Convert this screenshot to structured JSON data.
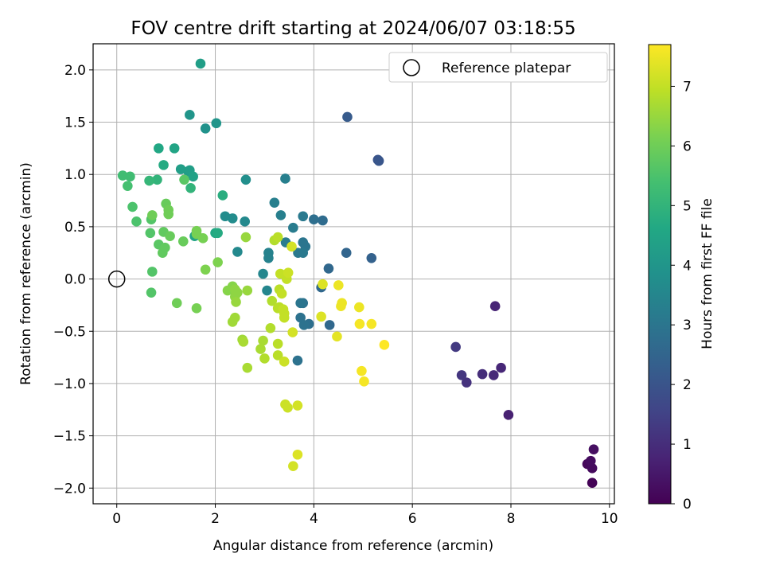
{
  "chart_data": {
    "type": "scatter",
    "title": "FOV centre drift starting at 2024/06/07 03:18:55",
    "xlabel": "Angular distance from reference (arcmin)",
    "ylabel": "Rotation from reference (arcmin)",
    "xlim": [
      -0.48,
      10.1
    ],
    "ylim": [
      -2.15,
      2.25
    ],
    "xticks": [
      0,
      2,
      4,
      6,
      8,
      10
    ],
    "xtick_labels": [
      "0",
      "2",
      "4",
      "6",
      "8",
      "10"
    ],
    "yticks": [
      -2.0,
      -1.5,
      -1.0,
      -0.5,
      0.0,
      0.5,
      1.0,
      1.5,
      2.0
    ],
    "ytick_labels": [
      "−2.0",
      "−1.5",
      "−1.0",
      "−0.5",
      "0.0",
      "0.5",
      "1.0",
      "1.5",
      "2.0"
    ],
    "grid": true,
    "legend": {
      "placement": "top-right",
      "entries": [
        "Reference platepar"
      ]
    },
    "reference_point": {
      "x": 0,
      "y": 0,
      "label": "Reference platepar"
    },
    "colorbar": {
      "label": "Hours from first FF file",
      "colormap": "viridis",
      "range": [
        0,
        7.7
      ],
      "ticks": [
        0,
        1,
        2,
        3,
        4,
        5,
        6,
        7
      ],
      "tick_labels": [
        "0",
        "1",
        "2",
        "3",
        "4",
        "5",
        "6",
        "7"
      ]
    },
    "points": [
      {
        "x": 9.65,
        "y": -1.95,
        "c": 0.05
      },
      {
        "x": 9.55,
        "y": -1.77,
        "c": 0.15
      },
      {
        "x": 9.65,
        "y": -1.81,
        "c": 0.2
      },
      {
        "x": 9.62,
        "y": -1.74,
        "c": 0.25
      },
      {
        "x": 9.68,
        "y": -1.63,
        "c": 0.3
      },
      {
        "x": 7.95,
        "y": -1.3,
        "c": 0.7
      },
      {
        "x": 7.8,
        "y": -0.85,
        "c": 0.85
      },
      {
        "x": 7.65,
        "y": -0.92,
        "c": 0.9
      },
      {
        "x": 7.68,
        "y": -0.26,
        "c": 0.8
      },
      {
        "x": 7.42,
        "y": -0.91,
        "c": 1.0
      },
      {
        "x": 7.1,
        "y": -0.99,
        "c": 1.1
      },
      {
        "x": 7.0,
        "y": -0.92,
        "c": 1.2
      },
      {
        "x": 6.88,
        "y": -0.65,
        "c": 1.3
      },
      {
        "x": 5.3,
        "y": 1.14,
        "c": 2.0
      },
      {
        "x": 5.32,
        "y": 1.13,
        "c": 2.05
      },
      {
        "x": 4.68,
        "y": 1.55,
        "c": 2.2
      },
      {
        "x": 5.17,
        "y": 0.2,
        "c": 2.4
      },
      {
        "x": 4.66,
        "y": 0.25,
        "c": 2.5
      },
      {
        "x": 4.3,
        "y": 0.1,
        "c": 2.6
      },
      {
        "x": 4.15,
        "y": -0.08,
        "c": 2.6
      },
      {
        "x": 4.32,
        "y": -0.44,
        "c": 2.6
      },
      {
        "x": 4.18,
        "y": 0.56,
        "c": 2.7
      },
      {
        "x": 4.0,
        "y": 0.57,
        "c": 2.8
      },
      {
        "x": 3.9,
        "y": -0.43,
        "c": 2.8
      },
      {
        "x": 3.8,
        "y": -0.44,
        "c": 2.9
      },
      {
        "x": 3.73,
        "y": -0.37,
        "c": 2.9
      },
      {
        "x": 3.78,
        "y": -0.23,
        "c": 2.9
      },
      {
        "x": 3.73,
        "y": -0.23,
        "c": 3.0
      },
      {
        "x": 3.67,
        "y": -0.78,
        "c": 2.9
      },
      {
        "x": 3.78,
        "y": 0.35,
        "c": 3.0
      },
      {
        "x": 3.83,
        "y": 0.31,
        "c": 3.0
      },
      {
        "x": 3.78,
        "y": 0.25,
        "c": 3.1
      },
      {
        "x": 3.68,
        "y": 0.25,
        "c": 3.1
      },
      {
        "x": 3.78,
        "y": 0.6,
        "c": 3.1
      },
      {
        "x": 3.58,
        "y": 0.49,
        "c": 3.2
      },
      {
        "x": 3.43,
        "y": 0.35,
        "c": 3.2
      },
      {
        "x": 3.33,
        "y": 0.61,
        "c": 3.3
      },
      {
        "x": 3.2,
        "y": 0.73,
        "c": 3.3
      },
      {
        "x": 3.42,
        "y": 0.96,
        "c": 3.3
      },
      {
        "x": 3.08,
        "y": 0.25,
        "c": 3.4
      },
      {
        "x": 3.08,
        "y": 0.2,
        "c": 3.4
      },
      {
        "x": 2.97,
        "y": 0.05,
        "c": 3.5
      },
      {
        "x": 3.05,
        "y": -0.11,
        "c": 3.5
      },
      {
        "x": 2.45,
        "y": 0.26,
        "c": 3.6
      },
      {
        "x": 2.6,
        "y": 0.55,
        "c": 3.6
      },
      {
        "x": 2.35,
        "y": 0.58,
        "c": 3.7
      },
      {
        "x": 2.2,
        "y": 0.6,
        "c": 3.7
      },
      {
        "x": 2.62,
        "y": 0.95,
        "c": 3.8
      },
      {
        "x": 1.8,
        "y": 1.44,
        "c": 3.9
      },
      {
        "x": 2.02,
        "y": 1.49,
        "c": 4.0
      },
      {
        "x": 1.48,
        "y": 1.57,
        "c": 4.0
      },
      {
        "x": 1.7,
        "y": 2.06,
        "c": 4.3
      },
      {
        "x": 1.45,
        "y": 1.03,
        "c": 4.2
      },
      {
        "x": 1.3,
        "y": 1.05,
        "c": 4.3
      },
      {
        "x": 1.48,
        "y": 1.04,
        "c": 4.3
      },
      {
        "x": 1.55,
        "y": 0.98,
        "c": 4.4
      },
      {
        "x": 1.58,
        "y": 0.41,
        "c": 4.5
      },
      {
        "x": 1.17,
        "y": 1.25,
        "c": 4.5
      },
      {
        "x": 0.85,
        "y": 1.25,
        "c": 4.6
      },
      {
        "x": 0.95,
        "y": 1.09,
        "c": 4.7
      },
      {
        "x": 2.0,
        "y": 0.44,
        "c": 4.6
      },
      {
        "x": 2.05,
        "y": 0.44,
        "c": 4.7
      },
      {
        "x": 2.15,
        "y": 0.8,
        "c": 4.8
      },
      {
        "x": 1.5,
        "y": 0.87,
        "c": 5.0
      },
      {
        "x": 0.82,
        "y": 0.95,
        "c": 5.0
      },
      {
        "x": 0.66,
        "y": 0.94,
        "c": 5.1
      },
      {
        "x": 0.12,
        "y": 0.99,
        "c": 5.3
      },
      {
        "x": 0.27,
        "y": 0.98,
        "c": 5.3
      },
      {
        "x": 0.22,
        "y": 0.89,
        "c": 5.4
      },
      {
        "x": 0.32,
        "y": 0.69,
        "c": 5.5
      },
      {
        "x": 0.4,
        "y": 0.55,
        "c": 5.5
      },
      {
        "x": 0.68,
        "y": 0.44,
        "c": 5.6
      },
      {
        "x": 0.7,
        "y": 0.57,
        "c": 5.6
      },
      {
        "x": 0.72,
        "y": 0.07,
        "c": 5.6
      },
      {
        "x": 0.7,
        "y": -0.13,
        "c": 5.6
      },
      {
        "x": 1.37,
        "y": 0.95,
        "c": 5.7
      },
      {
        "x": 0.85,
        "y": 0.33,
        "c": 5.7
      },
      {
        "x": 0.93,
        "y": 0.25,
        "c": 5.8
      },
      {
        "x": 0.95,
        "y": 0.45,
        "c": 5.8
      },
      {
        "x": 0.98,
        "y": 0.3,
        "c": 5.8
      },
      {
        "x": 1.08,
        "y": 0.41,
        "c": 5.9
      },
      {
        "x": 1.35,
        "y": 0.36,
        "c": 5.9
      },
      {
        "x": 1.0,
        "y": 0.72,
        "c": 5.9
      },
      {
        "x": 1.05,
        "y": 0.66,
        "c": 6.0
      },
      {
        "x": 1.05,
        "y": 0.62,
        "c": 6.0
      },
      {
        "x": 0.72,
        "y": 0.61,
        "c": 6.0
      },
      {
        "x": 1.22,
        "y": -0.23,
        "c": 6.0
      },
      {
        "x": 1.62,
        "y": 0.46,
        "c": 6.1
      },
      {
        "x": 1.62,
        "y": 0.43,
        "c": 6.1
      },
      {
        "x": 1.75,
        "y": 0.39,
        "c": 6.1
      },
      {
        "x": 1.62,
        "y": -0.28,
        "c": 6.1
      },
      {
        "x": 1.8,
        "y": 0.09,
        "c": 6.2
      },
      {
        "x": 2.05,
        "y": 0.16,
        "c": 6.2
      },
      {
        "x": 2.25,
        "y": -0.11,
        "c": 6.3
      },
      {
        "x": 2.35,
        "y": -0.07,
        "c": 6.3
      },
      {
        "x": 2.4,
        "y": -0.1,
        "c": 6.4
      },
      {
        "x": 2.45,
        "y": -0.13,
        "c": 6.4
      },
      {
        "x": 2.4,
        "y": -0.17,
        "c": 6.4
      },
      {
        "x": 2.42,
        "y": -0.22,
        "c": 6.5
      },
      {
        "x": 2.65,
        "y": -0.11,
        "c": 6.5
      },
      {
        "x": 2.62,
        "y": 0.4,
        "c": 6.5
      },
      {
        "x": 2.4,
        "y": -0.37,
        "c": 6.6
      },
      {
        "x": 2.35,
        "y": -0.41,
        "c": 6.6
      },
      {
        "x": 2.55,
        "y": -0.58,
        "c": 6.6
      },
      {
        "x": 2.57,
        "y": -0.6,
        "c": 6.7
      },
      {
        "x": 2.65,
        "y": -0.85,
        "c": 6.7
      },
      {
        "x": 2.92,
        "y": -0.67,
        "c": 6.7
      },
      {
        "x": 2.97,
        "y": -0.59,
        "c": 6.7
      },
      {
        "x": 3.0,
        "y": -0.76,
        "c": 6.8
      },
      {
        "x": 3.12,
        "y": -0.47,
        "c": 6.8
      },
      {
        "x": 3.15,
        "y": -0.21,
        "c": 6.8
      },
      {
        "x": 3.2,
        "y": 0.37,
        "c": 6.8
      },
      {
        "x": 3.27,
        "y": 0.4,
        "c": 6.9
      },
      {
        "x": 3.27,
        "y": -0.28,
        "c": 6.9
      },
      {
        "x": 3.3,
        "y": -0.27,
        "c": 6.9
      },
      {
        "x": 3.27,
        "y": -0.62,
        "c": 6.9
      },
      {
        "x": 3.27,
        "y": -0.73,
        "c": 6.9
      },
      {
        "x": 3.3,
        "y": -0.1,
        "c": 6.9
      },
      {
        "x": 3.35,
        "y": -0.14,
        "c": 7.0
      },
      {
        "x": 3.32,
        "y": 0.05,
        "c": 7.0
      },
      {
        "x": 3.38,
        "y": -0.29,
        "c": 7.0
      },
      {
        "x": 3.4,
        "y": -0.33,
        "c": 7.0
      },
      {
        "x": 3.4,
        "y": -0.37,
        "c": 7.0
      },
      {
        "x": 3.42,
        "y": 0.04,
        "c": 7.0
      },
      {
        "x": 3.45,
        "y": 0.0,
        "c": 7.0
      },
      {
        "x": 3.48,
        "y": 0.06,
        "c": 7.1
      },
      {
        "x": 3.4,
        "y": -0.79,
        "c": 7.1
      },
      {
        "x": 3.42,
        "y": -1.2,
        "c": 7.1
      },
      {
        "x": 3.47,
        "y": -1.23,
        "c": 7.1
      },
      {
        "x": 3.55,
        "y": 0.31,
        "c": 7.2
      },
      {
        "x": 3.57,
        "y": -0.51,
        "c": 7.2
      },
      {
        "x": 3.58,
        "y": -1.79,
        "c": 7.2
      },
      {
        "x": 3.67,
        "y": -1.21,
        "c": 7.2
      },
      {
        "x": 3.67,
        "y": -1.68,
        "c": 7.3
      },
      {
        "x": 4.18,
        "y": -0.05,
        "c": 7.3
      },
      {
        "x": 4.15,
        "y": -0.36,
        "c": 7.3
      },
      {
        "x": 4.47,
        "y": -0.55,
        "c": 7.4
      },
      {
        "x": 4.5,
        "y": -0.06,
        "c": 7.5
      },
      {
        "x": 4.55,
        "y": -0.26,
        "c": 7.5
      },
      {
        "x": 4.57,
        "y": -0.23,
        "c": 7.5
      },
      {
        "x": 4.92,
        "y": -0.27,
        "c": 7.5
      },
      {
        "x": 4.93,
        "y": -0.43,
        "c": 7.6
      },
      {
        "x": 5.17,
        "y": -0.43,
        "c": 7.6
      },
      {
        "x": 4.97,
        "y": -0.88,
        "c": 7.6
      },
      {
        "x": 5.02,
        "y": -0.98,
        "c": 7.6
      },
      {
        "x": 5.43,
        "y": -0.63,
        "c": 7.7
      }
    ]
  }
}
